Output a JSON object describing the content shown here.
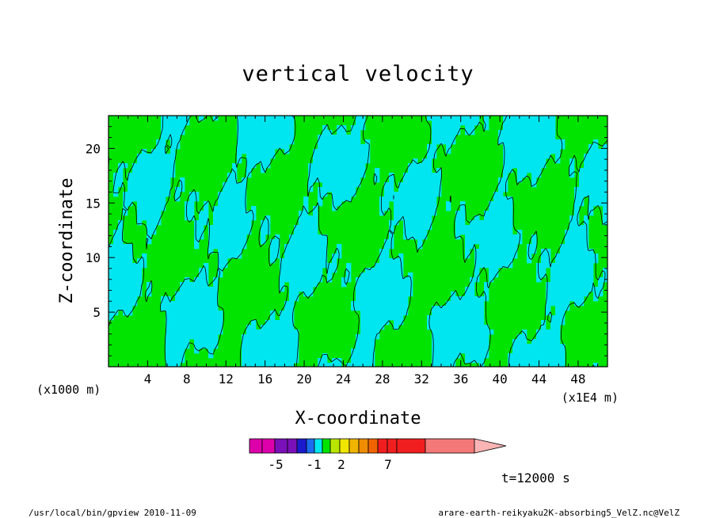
{
  "chart_data": {
    "type": "heatmap",
    "title": "vertical velocity",
    "xlabel": "X-coordinate",
    "ylabel": "Z-coordinate",
    "x_unit": "(x1E4 m)",
    "y_unit": "(x1000 m)",
    "xlim": [
      0,
      51
    ],
    "ylim": [
      0,
      23
    ],
    "x_ticks": [
      4,
      8,
      12,
      16,
      20,
      24,
      28,
      32,
      36,
      40,
      44,
      48
    ],
    "y_ticks": [
      5,
      10,
      15,
      20
    ],
    "grid": false,
    "colorbar": {
      "colors": [
        "#dd00aa",
        "#7a10b8",
        "#1a1acc",
        "#1c6cf0",
        "#00e6f0",
        "#00e400",
        "#b8e600",
        "#f0e600",
        "#f0b400",
        "#f08c00",
        "#f06400",
        "#f01e1e",
        "#f47878",
        "#fab4b4"
      ],
      "labels": [
        {
          "text": "-5",
          "value": -5
        },
        {
          "text": "-1",
          "value": -1
        },
        {
          "text": "2",
          "value": 2
        },
        {
          "text": "7",
          "value": 7
        }
      ]
    },
    "field_colors": {
      "negative": "#00e6f0",
      "positive": "#00e400",
      "contour": "#000000"
    },
    "time_label": "t=12000 s"
  },
  "footer": {
    "left": "/usr/local/bin/gpview  2010-11-09",
    "right": "arare-earth-reikyaku2K-absorbing5_VelZ.nc@VelZ"
  }
}
